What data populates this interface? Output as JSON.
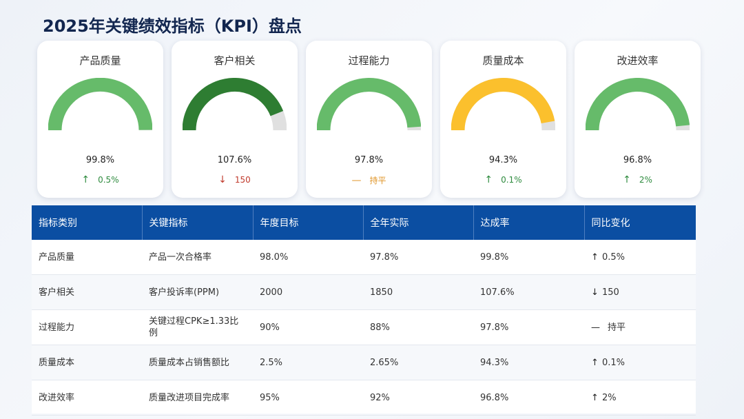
{
  "title": "2025年关键绩效指标（KPI）盘点",
  "colors": {
    "green": "#66bb6a",
    "dark_green": "#2e7d32",
    "yellow": "#fbc02d",
    "track": "#e0e0e0",
    "header_blue": "#0b4ea2"
  },
  "chart_data": {
    "type": "gauge",
    "cards": [
      {
        "name": "产品质量",
        "value": 99.8,
        "value_label": "99.8%",
        "trend": "up",
        "trend_icon": "↑",
        "change": "0.5%",
        "color": "#66bb6a"
      },
      {
        "name": "客户相关",
        "value": 107.6,
        "value_label": "107.6%",
        "trend": "down",
        "trend_icon": "↓",
        "change": "150",
        "color": "#2e7d32"
      },
      {
        "name": "过程能力",
        "value": 97.8,
        "value_label": "97.8%",
        "trend": "flat",
        "trend_icon": "—",
        "change": "持平",
        "color": "#66bb6a"
      },
      {
        "name": "质量成本",
        "value": 94.3,
        "value_label": "94.3%",
        "trend": "up",
        "trend_icon": "↑",
        "change": "0.1%",
        "color": "#fbc02d"
      },
      {
        "name": "改进效率",
        "value": 96.8,
        "value_label": "96.8%",
        "trend": "up",
        "trend_icon": "↑",
        "change": "2%",
        "color": "#66bb6a"
      }
    ]
  },
  "table": {
    "headers": [
      "指标类别",
      "关键指标",
      "年度目标",
      "全年实际",
      "达成率",
      "同比变化"
    ],
    "rows": [
      {
        "category": "产品质量",
        "metric": "产品一次合格率",
        "target": "98.0%",
        "actual": "97.8%",
        "rate": "99.8%",
        "arrow": "↑",
        "change": "0.5%"
      },
      {
        "category": "客户相关",
        "metric": "客户投诉率(PPM)",
        "target": "2000",
        "actual": "1850",
        "rate": "107.6%",
        "arrow": "↓",
        "change": "150"
      },
      {
        "category": "过程能力",
        "metric": "关键过程CPK≥1.33比例",
        "target": "90%",
        "actual": "88%",
        "rate": "97.8%",
        "arrow": "—",
        "change": "持平"
      },
      {
        "category": "质量成本",
        "metric": "质量成本占销售额比",
        "target": "2.5%",
        "actual": "2.65%",
        "rate": "94.3%",
        "arrow": "↑",
        "change": "0.1%"
      },
      {
        "category": "改进效率",
        "metric": "质量改进项目完成率",
        "target": "95%",
        "actual": "92%",
        "rate": "96.8%",
        "arrow": "↑",
        "change": "2%"
      }
    ]
  }
}
